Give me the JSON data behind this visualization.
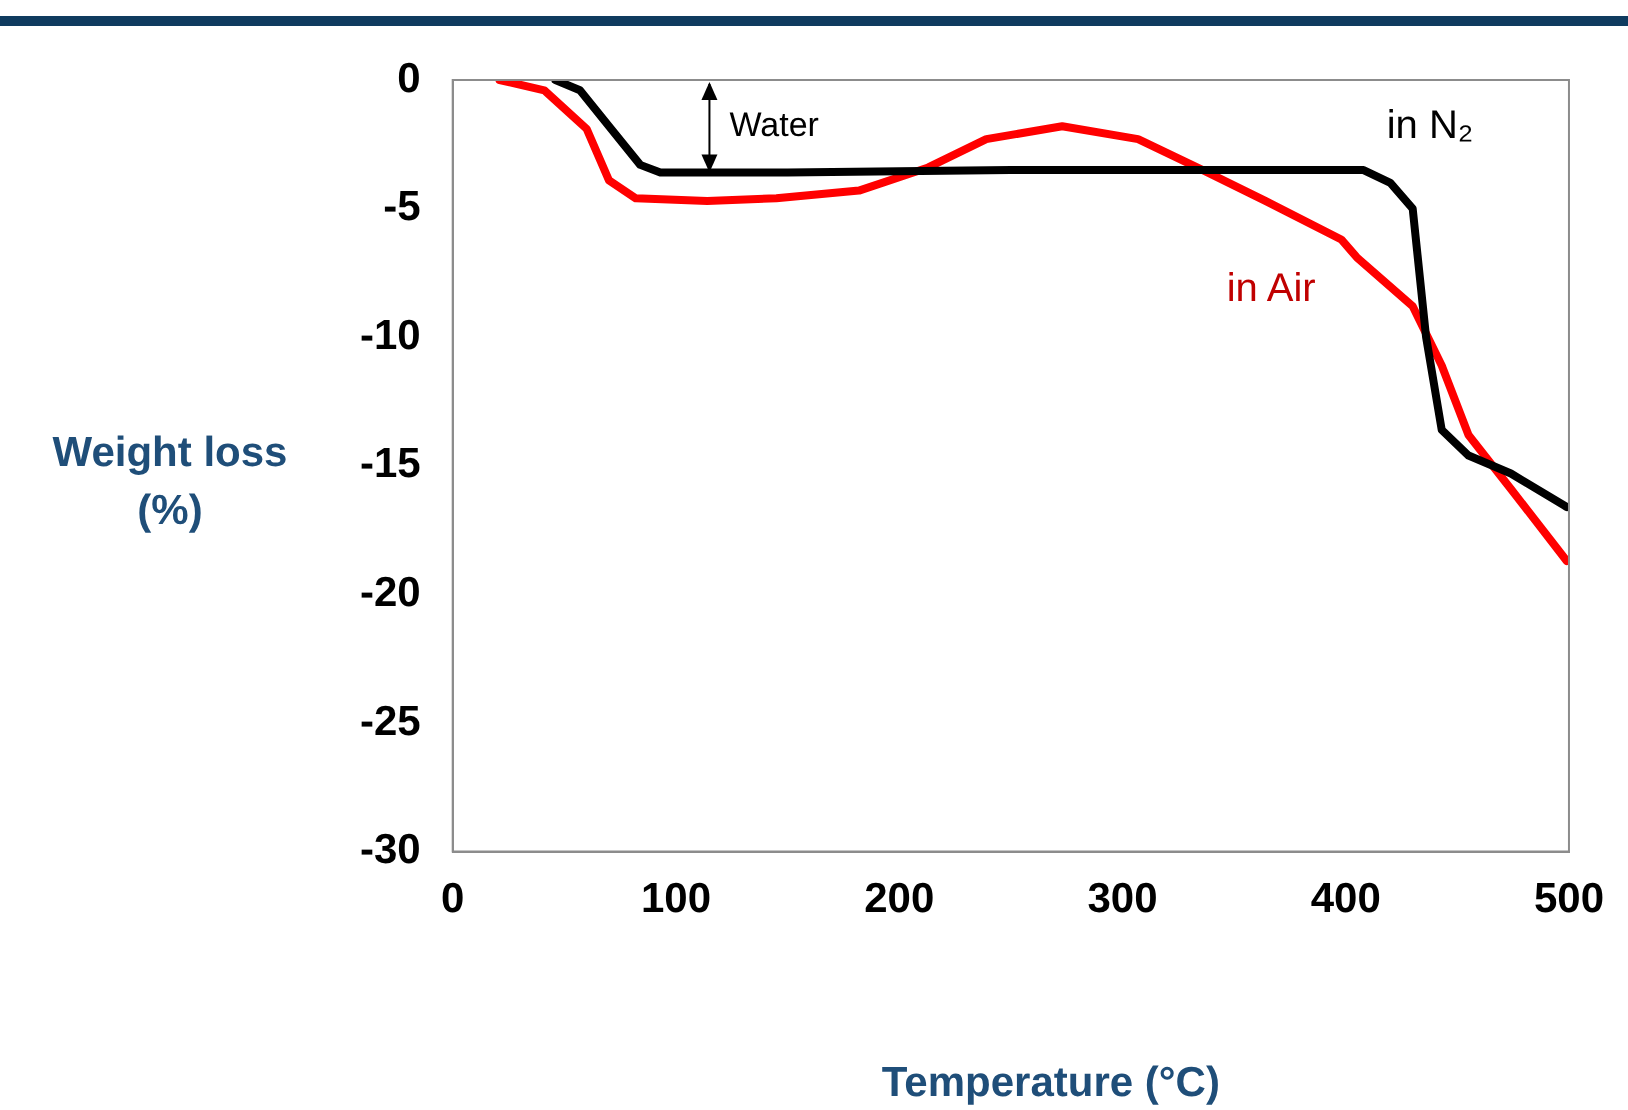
{
  "chart_data": {
    "type": "line",
    "xlabel": "Temperature (°C)",
    "ylabel": "Weight loss (%)",
    "xlim": [
      0,
      500
    ],
    "xticks": [
      0,
      100,
      200,
      300,
      400,
      500
    ],
    "ylim": [
      -30,
      0
    ],
    "yticks": [
      -30,
      -25,
      -20,
      -15,
      -10,
      -5,
      0
    ],
    "grid": false,
    "legend": false,
    "marker": "none",
    "line_style": "solid",
    "series": [
      {
        "name": "in N₂",
        "color": "#000000",
        "x": [
          46,
          57,
          70,
          84,
          93,
          150,
          250,
          350,
          408,
          420,
          430,
          436,
          443,
          455,
          474,
          499
        ],
        "values": [
          0,
          -0.4,
          -1.8,
          -3.3,
          -3.6,
          -3.6,
          -3.5,
          -3.5,
          -3.5,
          -4.0,
          -5.0,
          -10,
          -13.6,
          -14.6,
          -15.3,
          -16.6
        ]
      },
      {
        "name": "in Air",
        "color": "#ff0000",
        "x": [
          21,
          41,
          60,
          70,
          82,
          114,
          145,
          182,
          213,
          239,
          273,
          307,
          336,
          364,
          398,
          405,
          430,
          443,
          455,
          474,
          499
        ],
        "values": [
          0,
          -0.4,
          -1.9,
          -3.9,
          -4.6,
          -4.7,
          -4.6,
          -4.3,
          -3.4,
          -2.3,
          -1.8,
          -2.3,
          -3.5,
          -4.7,
          -6.2,
          -6.9,
          -8.8,
          -11.1,
          -13.8,
          -15.9,
          -18.7
        ]
      }
    ],
    "annotations": [
      "Water"
    ]
  }
}
